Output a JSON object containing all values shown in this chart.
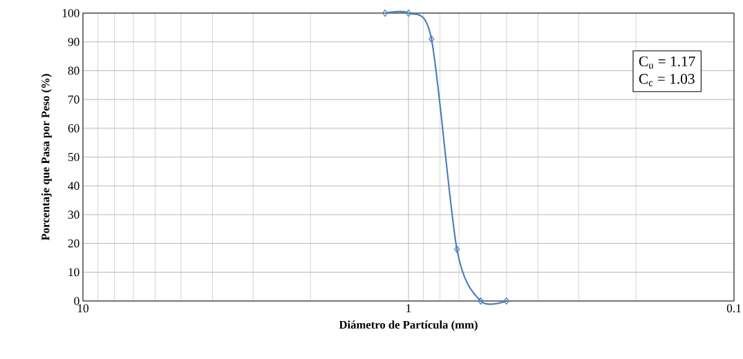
{
  "chart_data": {
    "type": "line",
    "xlabel": "Diámetro de Partícula (mm)",
    "ylabel": "Porcentaje que Pasa por Peso (%)",
    "x": [
      1.18,
      1.0,
      0.85,
      0.71,
      0.6,
      0.5
    ],
    "series": [
      {
        "color": "#4a7ebb",
        "values": [
          100,
          100,
          91,
          18,
          0,
          0
        ]
      }
    ],
    "log": "x",
    "xlim": [
      10,
      0.1
    ],
    "xticks": [
      10,
      1,
      0.1
    ],
    "ylim": [
      0,
      100
    ],
    "yticks": [
      0,
      10,
      20,
      30,
      40,
      50,
      60,
      70,
      80,
      90,
      100
    ],
    "grid": true,
    "marker": "diamond",
    "line_style": "solid",
    "annotations": [
      "C$_{u}$ = 1.17",
      "C$_{c}$ = 1.03"
    ]
  }
}
